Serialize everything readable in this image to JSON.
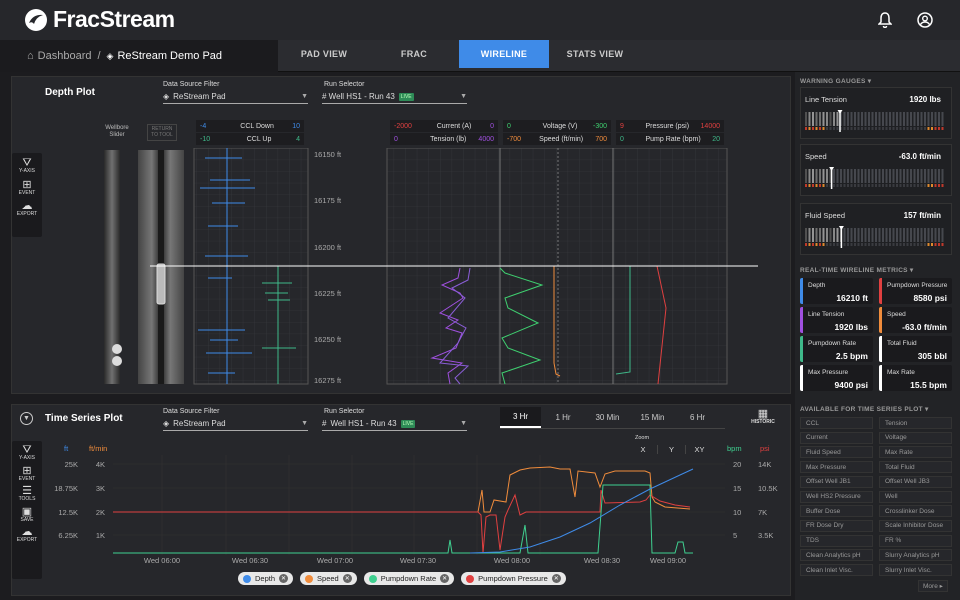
{
  "app": {
    "name": "FracStream"
  },
  "breadcrumb": {
    "home": "Dashboard",
    "separator": "/",
    "current": "ReStream Demo Pad"
  },
  "tabs": [
    {
      "label": "PAD VIEW"
    },
    {
      "label": "FRAC"
    },
    {
      "label": "WIRELINE",
      "active": true
    },
    {
      "label": "STATS VIEW"
    }
  ],
  "depth_plot": {
    "title": "Depth Plot",
    "source_label": "Data Source Filter",
    "source_value": "ReStream Pad",
    "run_label": "Run Selector",
    "run_value": "# Well HS1 - Run 43",
    "run_badge": "LIVE",
    "tools": [
      {
        "label": "Y-AXIS",
        "icon": "y-axis-icon"
      },
      {
        "label": "EVENT",
        "icon": "event-icon"
      },
      {
        "label": "EXPORT",
        "icon": "export-icon"
      }
    ],
    "wellbore_label": "Wellbore Slider",
    "return_label": "RETURN TO TOOL",
    "depth_ticks": [
      "16150 ft",
      "16175 ft",
      "16200 ft",
      "16225 ft",
      "16250 ft",
      "16275 ft"
    ],
    "ccl_legend": [
      {
        "min": "-4",
        "name": "CCL Down",
        "max": "10",
        "color": "#3f8be8"
      },
      {
        "min": "-10",
        "name": "CCL Up",
        "max": "4",
        "color": "#3fb98a"
      }
    ],
    "ct_legend": [
      {
        "min": "-2000",
        "name": "Current (A)",
        "max": "0",
        "color": "#a050e0"
      },
      {
        "min": "0",
        "name": "Tension (lb)",
        "max": "4000",
        "color": "#a050e0"
      }
    ],
    "vs_legend": [
      {
        "min": "0",
        "name": "Voltage (V)",
        "max": "-300",
        "color": "#3fd070"
      },
      {
        "min": "-700",
        "name": "Speed (ft/min)",
        "max": "700",
        "color": "#f08c3c"
      }
    ],
    "pp_legend": [
      {
        "min": "9",
        "name": "Pressure (psi)",
        "max": "14000",
        "color": "#e04040"
      },
      {
        "min": "0",
        "name": "Pump Rate (bpm)",
        "max": "20",
        "color": "#3fb98a"
      }
    ]
  },
  "time_series": {
    "title": "Time Series Plot",
    "source_label": "Data Source Filter",
    "source_value": "ReStream Pad",
    "run_label": "Run Selector",
    "run_value": "Well HS1 - Run 43",
    "run_badge": "LIVE",
    "ranges": [
      {
        "label": "3 Hr",
        "active": true
      },
      {
        "label": "1 Hr"
      },
      {
        "label": "30 Min"
      },
      {
        "label": "15 Min"
      },
      {
        "label": "6 Hr"
      }
    ],
    "historic_label": "HISTORIC",
    "zoom_label": "Zoom",
    "zoom_options": [
      "X",
      "Y",
      "XY"
    ],
    "tools": [
      {
        "label": "Y-AXIS",
        "icon": "y-axis-icon"
      },
      {
        "label": "EVENT",
        "icon": "event-icon"
      },
      {
        "label": "TOOLS",
        "icon": "tools-icon"
      },
      {
        "label": "SAVE",
        "icon": "save-icon"
      },
      {
        "label": "EXPORT",
        "icon": "export-icon"
      }
    ],
    "legend_chips": [
      {
        "label": "Depth",
        "color": "#3f8be8"
      },
      {
        "label": "Speed",
        "color": "#f08c3c"
      },
      {
        "label": "Pumpdown Rate",
        "color": "#3fd090"
      },
      {
        "label": "Pumpdown Pressure",
        "color": "#e04040"
      }
    ]
  },
  "chart_data": {
    "type": "line",
    "x": [
      "Wed 06:00",
      "Wed 06:30",
      "Wed 07:00",
      "Wed 07:30",
      "Wed 08:00",
      "Wed 08:30",
      "Wed 09:00"
    ],
    "axes": {
      "left_outer": {
        "unit": "ft",
        "ticks": [
          "25K",
          "18.75K",
          "12.5K",
          "6.25K"
        ],
        "color": "#3f8be8"
      },
      "left_inner": {
        "unit": "ft/min",
        "ticks": [
          "4K",
          "3K",
          "2K",
          "1K"
        ],
        "color": "#f08c3c"
      },
      "right_inner": {
        "unit": "bpm",
        "ticks": [
          "20",
          "15",
          "10",
          "5"
        ],
        "color": "#3fd090"
      },
      "right_outer": {
        "unit": "psi",
        "ticks": [
          "14K",
          "10.5K",
          "7K",
          "3.5K"
        ],
        "color": "#e04040"
      }
    },
    "series": [
      {
        "name": "Depth"
      },
      {
        "name": "Speed"
      },
      {
        "name": "Pumpdown Rate"
      },
      {
        "name": "Pumpdown Pressure"
      }
    ]
  },
  "warning_gauges": {
    "title": "WARNING GAUGES",
    "items": [
      {
        "label": "Line Tension",
        "value": "1920 lbs",
        "level": 0.25
      },
      {
        "label": "Speed",
        "value": "-63.0 ft/min",
        "level": 0.19
      },
      {
        "label": "Fluid Speed",
        "value": "157 ft/min",
        "level": 0.26
      }
    ]
  },
  "metrics": {
    "title": "REAL-TIME WIRELINE METRICS",
    "items": [
      {
        "label": "Depth",
        "value": "16210 ft",
        "color": "#3f8be8"
      },
      {
        "label": "Pumpdown Pressure",
        "value": "8580 psi",
        "color": "#e04040"
      },
      {
        "label": "Line Tension",
        "value": "1920 lbs",
        "color": "#a050e0"
      },
      {
        "label": "Speed",
        "value": "-63.0 ft/min",
        "color": "#f08c3c"
      },
      {
        "label": "Pumpdown Rate",
        "value": "2.5 bpm",
        "color": "#3fb98a"
      },
      {
        "label": "Total Fluid",
        "value": "305 bbl",
        "color": "#ffffff"
      },
      {
        "label": "Max Pressure",
        "value": "9400 psi",
        "color": "#ffffff"
      },
      {
        "label": "Max Rate",
        "value": "15.5 bpm",
        "color": "#ffffff"
      }
    ]
  },
  "available": {
    "title": "AVAILABLE FOR TIME SERIES PLOT",
    "items": [
      "CCL",
      "Tension",
      "Current",
      "Voltage",
      "Fluid Speed",
      "Max Rate",
      "Max Pressure",
      "Total Fluid",
      "Offset Well JB1",
      "Offset Well JB3",
      "Well HS2 Pressure",
      "Well",
      "Buffer Dose",
      "Crosslinker Dose",
      "FR Dose Dry",
      "Scale Inhibitor Dose",
      "TDS",
      "FR %",
      "Clean Analytics pH",
      "Slurry Analytics pH",
      "Clean Inlet Visc.",
      "Slurry Inlet Visc."
    ],
    "more_label": "More ▸"
  }
}
